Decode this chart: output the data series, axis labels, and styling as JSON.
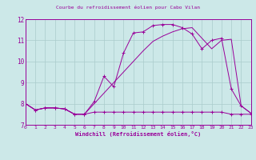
{
  "title": "Courbe du refroidissement éolien pour Cabo Vilan",
  "xlabel": "Windchill (Refroidissement éolien,°C)",
  "bg_color": "#cce8e8",
  "line_color": "#990099",
  "grid_color": "#aacccc",
  "xlim": [
    0,
    23
  ],
  "ylim": [
    7,
    12
  ],
  "yticks": [
    7,
    8,
    9,
    10,
    11,
    12
  ],
  "xticks": [
    0,
    1,
    2,
    3,
    4,
    5,
    6,
    7,
    8,
    9,
    10,
    11,
    12,
    13,
    14,
    15,
    16,
    17,
    18,
    19,
    20,
    21,
    22,
    23
  ],
  "series1_x": [
    0,
    1,
    2,
    3,
    4,
    5,
    6,
    7,
    8,
    9,
    10,
    11,
    12,
    13,
    14,
    15,
    16,
    17,
    18,
    19,
    20,
    21,
    22,
    23
  ],
  "series1_y": [
    8.0,
    7.7,
    7.8,
    7.8,
    7.75,
    7.5,
    7.5,
    7.6,
    7.6,
    7.6,
    7.6,
    7.6,
    7.6,
    7.6,
    7.6,
    7.6,
    7.6,
    7.6,
    7.6,
    7.6,
    7.6,
    7.5,
    7.5,
    7.5
  ],
  "series2_x": [
    0,
    1,
    2,
    3,
    4,
    5,
    6,
    7,
    8,
    9,
    10,
    11,
    12,
    13,
    14,
    15,
    16,
    17,
    18,
    19,
    20,
    21,
    22,
    23
  ],
  "series2_y": [
    8.0,
    7.7,
    7.8,
    7.8,
    7.75,
    7.5,
    7.5,
    8.1,
    9.3,
    8.8,
    10.4,
    11.35,
    11.4,
    11.7,
    11.75,
    11.75,
    11.6,
    11.3,
    10.6,
    11.0,
    11.1,
    8.7,
    7.9,
    7.55
  ],
  "series3_x": [
    0,
    1,
    2,
    3,
    4,
    5,
    6,
    7,
    8,
    9,
    10,
    11,
    12,
    13,
    14,
    15,
    16,
    17,
    18,
    19,
    20,
    21,
    22,
    23
  ],
  "series3_y": [
    8.0,
    7.7,
    7.8,
    7.8,
    7.75,
    7.5,
    7.5,
    8.0,
    8.5,
    9.0,
    9.5,
    10.0,
    10.5,
    10.95,
    11.2,
    11.4,
    11.55,
    11.6,
    11.1,
    10.6,
    11.0,
    11.05,
    7.9,
    7.55
  ]
}
